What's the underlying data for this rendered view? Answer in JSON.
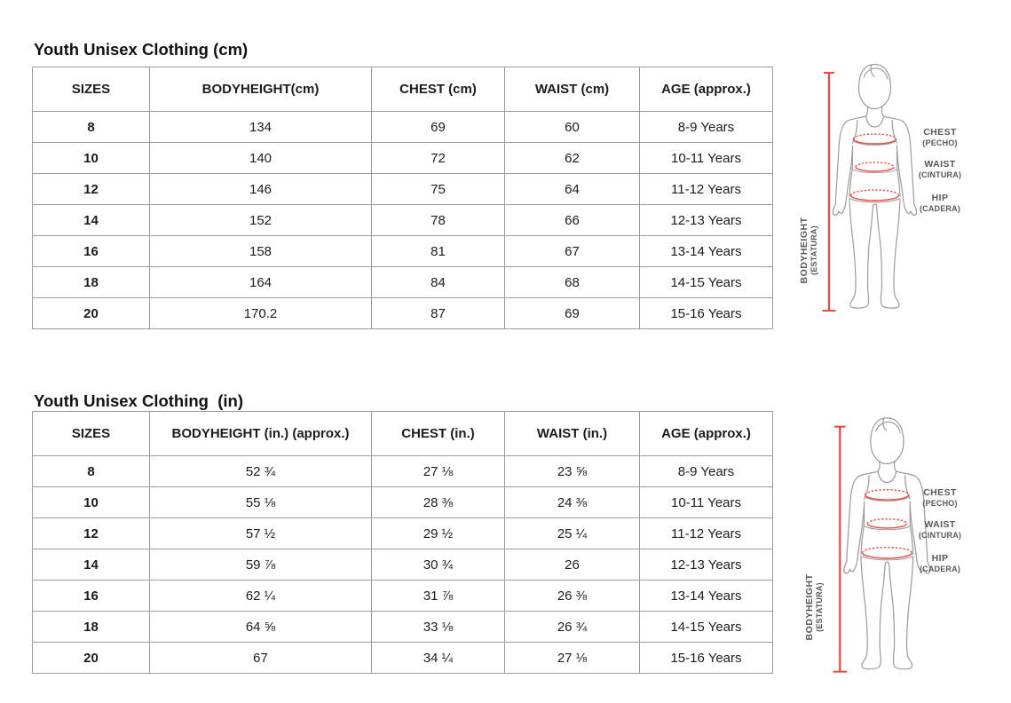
{
  "colors": {
    "measure_red": "#f4483f",
    "outline_gray": "#9c9c9c",
    "label_gray": "#56575a"
  },
  "sections": [
    {
      "title": "Youth Unisex Clothing (cm)",
      "table": {
        "headers": [
          "SIZES",
          "BODYHEIGHT(cm)",
          "CHEST (cm)",
          "WAIST (cm)",
          "AGE (approx.)"
        ],
        "rows": [
          [
            "8",
            "134",
            "69",
            "60",
            "8-9 Years"
          ],
          [
            "10",
            "140",
            "72",
            "62",
            "10-11 Years"
          ],
          [
            "12",
            "146",
            "75",
            "64",
            "11-12 Years"
          ],
          [
            "14",
            "152",
            "78",
            "66",
            "12-13 Years"
          ],
          [
            "16",
            "158",
            "81",
            "67",
            "13-14 Years"
          ],
          [
            "18",
            "164",
            "84",
            "68",
            "14-15 Years"
          ],
          [
            "20",
            "170.2",
            "87",
            "69",
            "15-16 Years"
          ]
        ]
      },
      "figure": {
        "labels": {
          "chest": "CHEST",
          "chest_sub": "(PECHO)",
          "waist": "WAIST",
          "waist_sub": "(CINTURA)",
          "hip": "HIP",
          "hip_sub": "(CADERA)",
          "height": "BODYHEIGHT",
          "height_sub": "(ESTATURA)"
        }
      }
    },
    {
      "title": "Youth Unisex Clothing  (in)",
      "table": {
        "headers": [
          "SIZES",
          "BODYHEIGHT (in.) (approx.)",
          "CHEST (in.)",
          "WAIST (in.)",
          "AGE (approx.)"
        ],
        "rows": [
          [
            "8",
            "52 ¾",
            "27 ⅛",
            "23 ⅝",
            "8-9 Years"
          ],
          [
            "10",
            "55 ⅛",
            "28 ⅜",
            "24 ⅜",
            "10-11 Years"
          ],
          [
            "12",
            "57 ½",
            "29 ½",
            "25 ¼",
            "11-12 Years"
          ],
          [
            "14",
            "59 ⅞",
            "30 ¾",
            "26",
            "12-13 Years"
          ],
          [
            "16",
            "62 ¼",
            "31 ⅞",
            "26 ⅜",
            "13-14 Years"
          ],
          [
            "18",
            "64 ⅝",
            "33 ⅛",
            "26 ¾",
            "14-15 Years"
          ],
          [
            "20",
            "67",
            "34 ¼",
            "27 ⅛",
            "15-16 Years"
          ]
        ]
      },
      "figure": {
        "labels": {
          "chest": "CHEST",
          "chest_sub": "(PECHO)",
          "waist": "WAIST",
          "waist_sub": "(CINTURA)",
          "hip": "HIP",
          "hip_sub": "(CADERA)",
          "height": "BODYHEIGHT",
          "height_sub": "(ESTATURA)"
        }
      }
    }
  ]
}
